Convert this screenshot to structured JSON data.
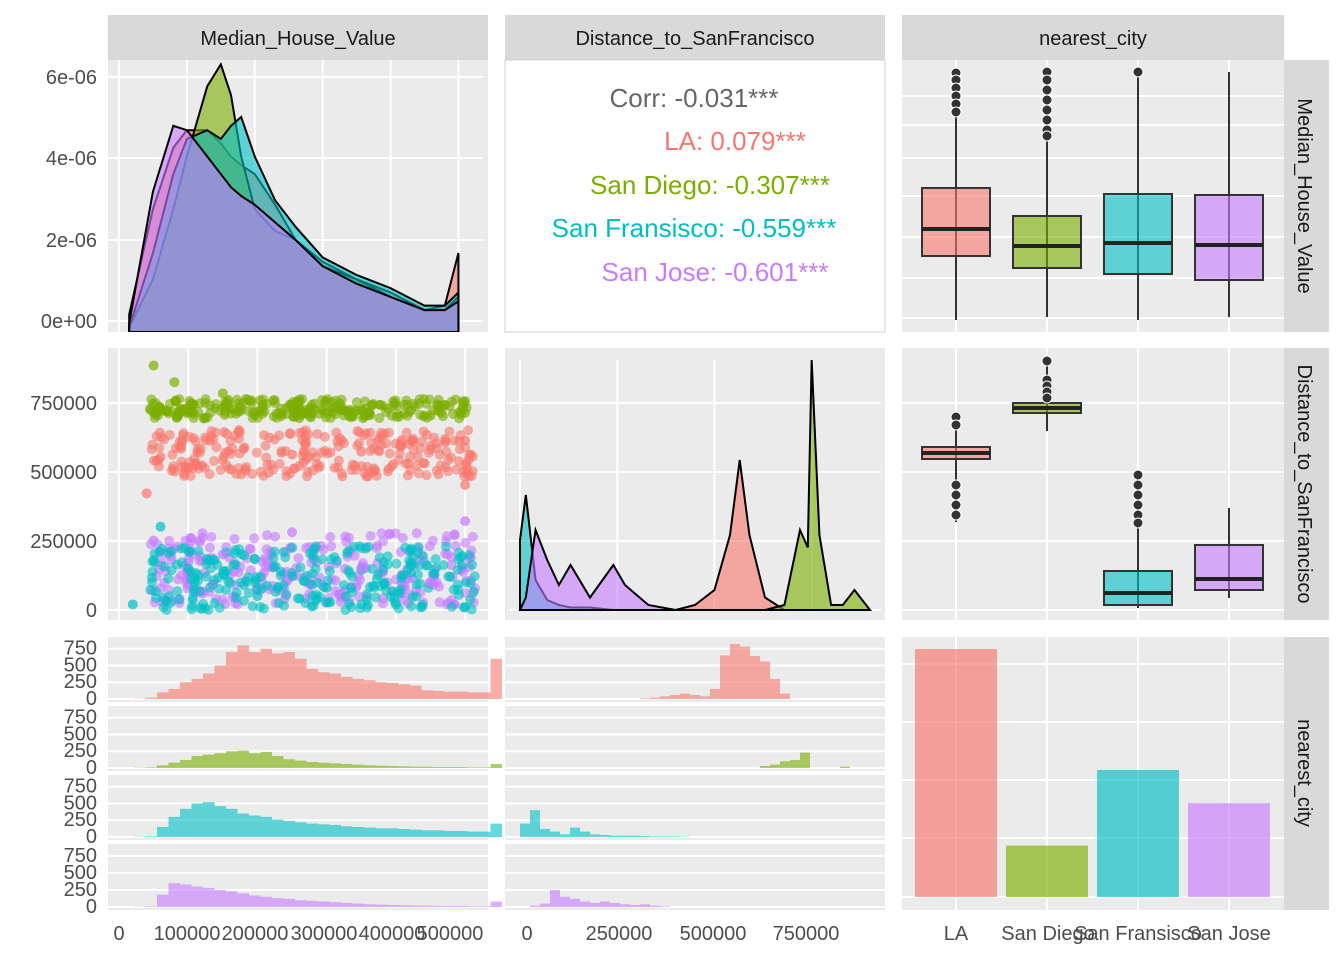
{
  "colors": {
    "LA": "#F8766D",
    "San Diego": "#7CAE00",
    "San Fransisco": "#00BFC4",
    "San Jose": "#C77CFF",
    "panel_bg": "#EBEBEB",
    "strip_bg": "#D9D9D9",
    "corr_text": "#666666"
  },
  "col_strips": [
    "Median_House_Value",
    "Distance_to_SanFrancisco",
    "nearest_city"
  ],
  "row_strips": [
    "Median_House_Value",
    "Distance_to_SanFrancisco",
    "nearest_city"
  ],
  "axis_labels": {
    "y_density": [
      "0e+00",
      "2e-06",
      "4e-06",
      "6e-06"
    ],
    "y_distance": [
      "0",
      "250000",
      "500000",
      "750000"
    ],
    "y_hist": [
      "0",
      "250",
      "500",
      "750"
    ],
    "x_value": [
      "0",
      "100000",
      "200000",
      "300000",
      "400000",
      "500000"
    ],
    "x_distance": [
      "0",
      "250000",
      "500000",
      "750000"
    ],
    "x_city": [
      "LA",
      "San Diego",
      "San Fransisco",
      "San Jose"
    ]
  },
  "correlation": {
    "overall": "Corr: -0.031***",
    "groups": [
      {
        "city": "LA",
        "text": "LA: 0.079***"
      },
      {
        "city": "San Diego",
        "text": "San Diego: -0.307***"
      },
      {
        "city": "San Fransisco",
        "text": "San Fransisco: -0.559***"
      },
      {
        "city": "San Jose",
        "text": "San Jose: -0.601***"
      }
    ]
  },
  "chart_data": [
    {
      "type": "area",
      "panel": "density Median_House_Value",
      "x": [
        15000,
        50000,
        80000,
        100000,
        130000,
        150000,
        165000,
        180000,
        200000,
        230000,
        260000,
        300000,
        350000,
        400000,
        450000,
        480000,
        500000
      ],
      "ylim": [
        0,
        6.2e-06
      ],
      "series": [
        {
          "name": "LA",
          "values": [
            4e-07,
            2.8e-06,
            4.2e-06,
            4.6e-06,
            4.6e-06,
            4.3e-06,
            4e-06,
            3.8e-06,
            3.6e-06,
            2.9e-06,
            2.1e-06,
            1.6e-06,
            1.2e-06,
            9e-07,
            5e-07,
            6e-07,
            1.8e-06
          ]
        },
        {
          "name": "San Diego",
          "values": [
            1e-07,
            1.2e-06,
            2.8e-06,
            4e-06,
            5.6e-06,
            6.1e-06,
            5.4e-06,
            4e-06,
            2.8e-06,
            2.3e-06,
            2.1e-06,
            1.5e-06,
            1.2e-06,
            8e-07,
            5e-07,
            5e-07,
            8e-07
          ]
        },
        {
          "name": "San Fransisco",
          "values": [
            1e-07,
            1.8e-06,
            3.6e-06,
            4.4e-06,
            4.6e-06,
            4.4e-06,
            4.7e-06,
            4.9e-06,
            4e-06,
            3e-06,
            2.4e-06,
            1.7e-06,
            1.3e-06,
            1e-06,
            6e-07,
            6e-07,
            9e-07
          ]
        },
        {
          "name": "San Jose",
          "values": [
            2e-07,
            3.2e-06,
            4.7e-06,
            4.6e-06,
            4e-06,
            3.6e-06,
            3.3e-06,
            3.1e-06,
            2.9e-06,
            2.5e-06,
            2.1e-06,
            1.5e-06,
            1.1e-06,
            8e-07,
            5e-07,
            5e-07,
            7e-07
          ]
        }
      ]
    },
    {
      "type": "area",
      "panel": "density Distance_to_SanFrancisco",
      "x": [
        0,
        15000,
        40000,
        70000,
        100000,
        130000,
        180000,
        240000,
        270000,
        330000,
        400000,
        450000,
        500000,
        540000,
        565000,
        590000,
        630000,
        680000,
        720000,
        740000,
        750000,
        770000,
        800000,
        830000,
        860000,
        900000
      ],
      "ylim": [
        0,
        1
      ],
      "series": [
        {
          "name": "LA",
          "values": [
            0,
            0,
            0,
            0,
            0,
            0,
            0,
            0,
            0,
            0,
            0,
            0.02,
            0.08,
            0.3,
            0.6,
            0.3,
            0.05,
            0,
            0,
            0,
            0,
            0,
            0,
            0,
            0,
            0
          ]
        },
        {
          "name": "San Diego",
          "values": [
            0,
            0,
            0,
            0,
            0,
            0,
            0,
            0,
            0,
            0,
            0,
            0,
            0,
            0,
            0,
            0,
            0,
            0.02,
            0.32,
            0.25,
            1.0,
            0.3,
            0.02,
            0.02,
            0.08,
            0
          ]
        },
        {
          "name": "San Fransisco",
          "values": [
            0.28,
            0.46,
            0.12,
            0.04,
            0.02,
            0.01,
            0.01,
            0,
            0,
            0,
            0,
            0,
            0,
            0,
            0,
            0,
            0,
            0,
            0,
            0,
            0,
            0,
            0,
            0,
            0,
            0
          ]
        },
        {
          "name": "San Jose",
          "values": [
            0,
            0.05,
            0.32,
            0.2,
            0.1,
            0.18,
            0.05,
            0.18,
            0.1,
            0.02,
            0,
            0,
            0,
            0,
            0,
            0,
            0,
            0,
            0,
            0,
            0,
            0,
            0,
            0,
            0,
            0
          ]
        }
      ]
    },
    {
      "type": "scatter",
      "panel": "Median_House_Value vs Distance_to_SanFrancisco",
      "xlim": [
        0,
        520000
      ],
      "ylim": [
        0,
        900000
      ],
      "series": [
        {
          "name": "LA",
          "values": [
            [
              60000,
              550000
            ],
            [
              120000,
              520000
            ],
            [
              180000,
              580000
            ],
            [
              250000,
              560000
            ],
            [
              350000,
              570000
            ],
            [
              450000,
              590000
            ],
            [
              500000,
              610000
            ],
            [
              40000,
              420000
            ],
            [
              500000,
              450000
            ]
          ]
        },
        {
          "name": "San Diego",
          "values": [
            [
              50000,
              880000
            ],
            [
              80000,
              820000
            ],
            [
              150000,
              780000
            ],
            [
              250000,
              740000
            ],
            [
              350000,
              720000
            ],
            [
              450000,
              700000
            ],
            [
              500000,
              710000
            ]
          ]
        },
        {
          "name": "San Fransisco",
          "values": [
            [
              20000,
              20000
            ],
            [
              60000,
              300000
            ],
            [
              100000,
              150000
            ],
            [
              200000,
              50000
            ],
            [
              300000,
              80000
            ],
            [
              400000,
              20000
            ],
            [
              500000,
              10000
            ]
          ]
        },
        {
          "name": "San Jose",
          "values": [
            [
              50000,
              250000
            ],
            [
              150000,
              200000
            ],
            [
              250000,
              280000
            ],
            [
              350000,
              150000
            ],
            [
              450000,
              100000
            ],
            [
              500000,
              320000
            ]
          ]
        }
      ]
    },
    {
      "type": "bar",
      "panel": "nearest_city counts",
      "categories": [
        "LA",
        "San Diego",
        "San Fransisco",
        "San Jose"
      ],
      "values": [
        8200,
        1700,
        4200,
        3100
      ]
    }
  ]
}
